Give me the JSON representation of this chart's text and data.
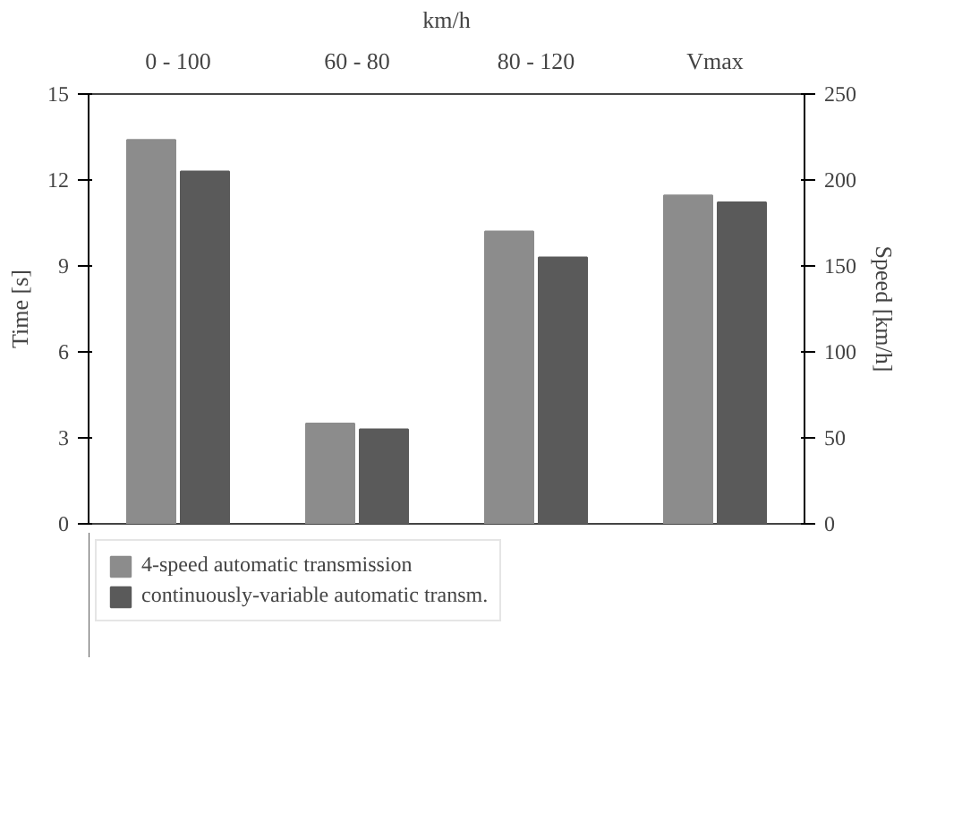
{
  "chart_data": {
    "type": "bar",
    "xlabel": "km/h",
    "ylabel": "Time [s]",
    "y2label": "Speed [km/h]",
    "categories": [
      "0 - 100",
      "60 - 80",
      "80 - 120",
      "Vmax"
    ],
    "series": [
      {
        "name": "4-speed automatic transmission",
        "color": "#8c8c8c",
        "values": [
          13.4,
          3.5,
          10.2,
          null
        ]
      },
      {
        "name": "continuously-variable automatic transm.",
        "color": "#5a5a5a",
        "values": [
          12.3,
          3.3,
          9.3,
          null
        ]
      },
      {
        "color": "#8c8c8c",
        "values": [
          null,
          null,
          null,
          191
        ],
        "axis": "y2"
      },
      {
        "color": "#5a5a5a",
        "values": [
          null,
          null,
          null,
          187
        ],
        "axis": "y2"
      }
    ],
    "ylim": [
      0,
      15
    ],
    "yticks": [
      0,
      3,
      6,
      9,
      12,
      15
    ],
    "y2lim": [
      0,
      250
    ],
    "y2ticks": [
      0,
      50,
      100,
      150,
      200,
      250
    ],
    "grid": false,
    "legend": "bottom"
  }
}
